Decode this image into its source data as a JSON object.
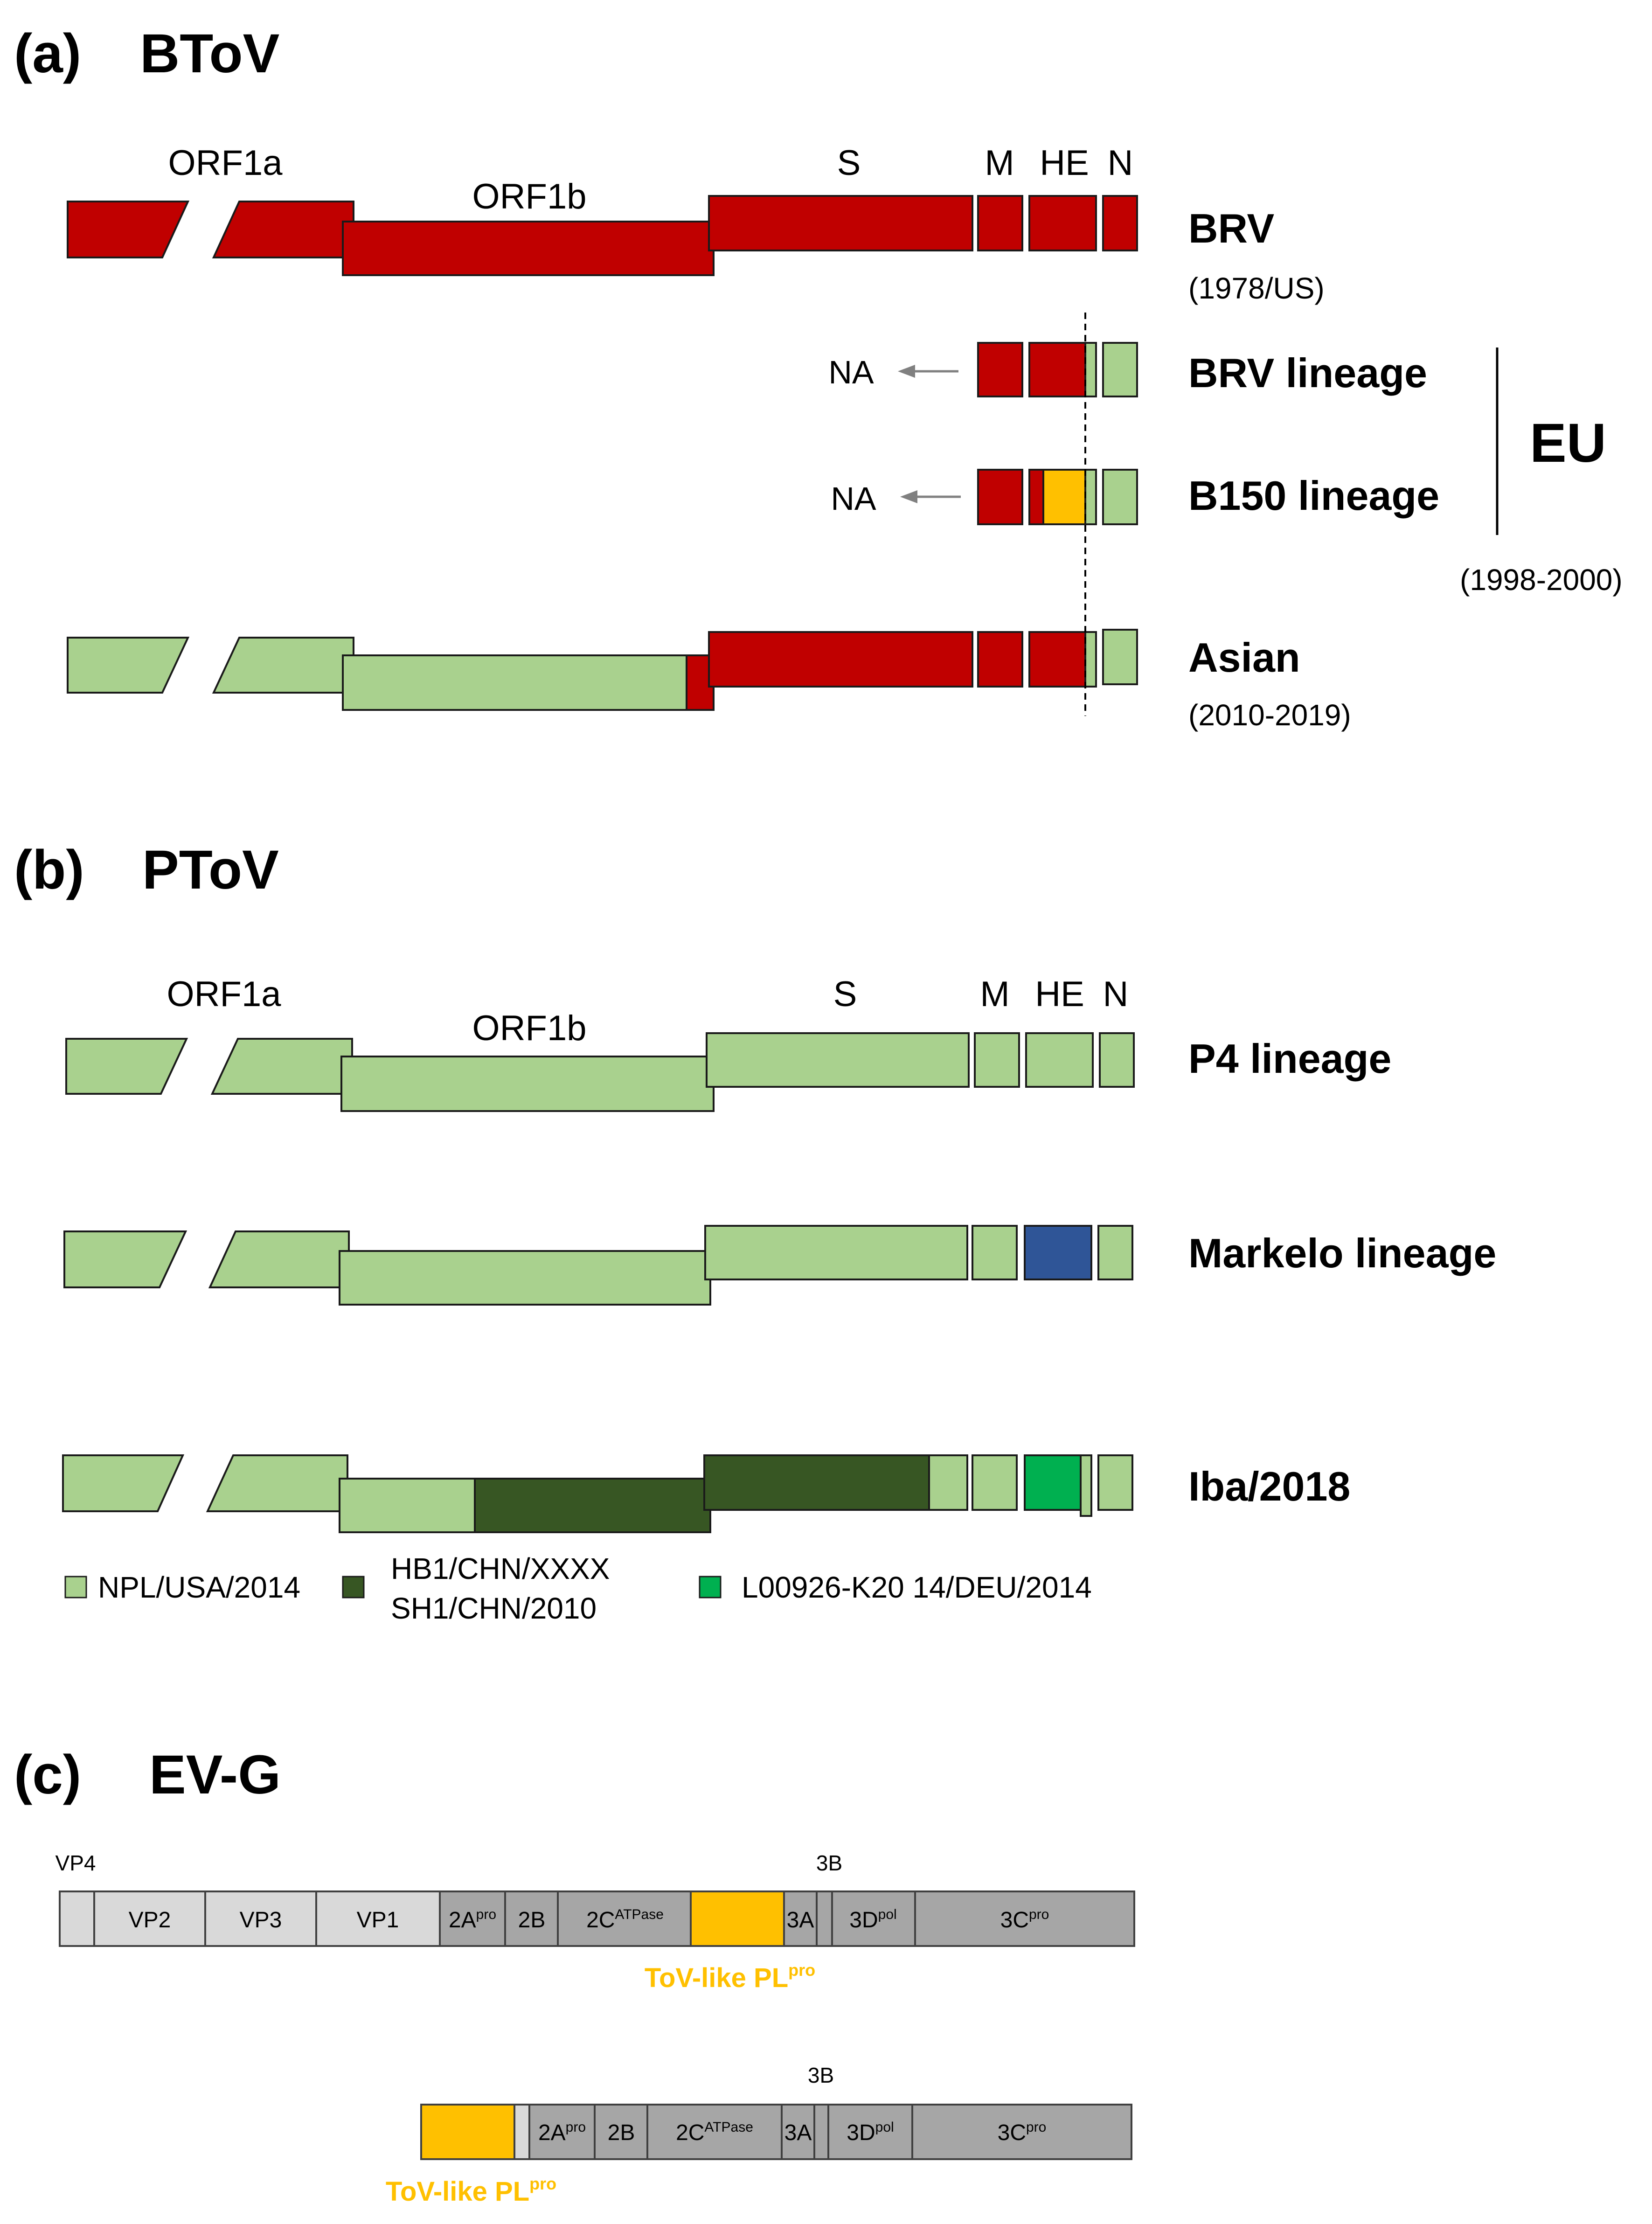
{
  "colors": {
    "brv_red": "#c00000",
    "light_green": "#a9d18e",
    "dark_green": "#375623",
    "navy_blue": "#2f5597",
    "bright_green": "#00b050",
    "orange": "#ffc000",
    "light_gray": "#d9d9d9",
    "mid_gray": "#a6a6a6",
    "outline": "#1a1a1a"
  },
  "panel_a": {
    "letter": "(a)",
    "name": "BToV",
    "gene_labels": {
      "orf1a": "ORF1a",
      "orf1b": "ORF1b",
      "s": "S",
      "m": "M",
      "he": "HE",
      "n": "N"
    },
    "rows": {
      "brv": {
        "name": "BRV",
        "sub": "(1978/US)"
      },
      "brv_lineage": {
        "name": "BRV lineage",
        "na": "NA"
      },
      "b150_lineage": {
        "name": "B150 lineage",
        "na": "NA"
      },
      "asian": {
        "name": "Asian",
        "sub": "(2010-2019)"
      }
    },
    "group_label": "EU",
    "group_sub": "(1998-2000)"
  },
  "panel_b": {
    "letter": "(b)",
    "name": "PToV",
    "gene_labels": {
      "orf1a": "ORF1a",
      "orf1b": "ORF1b",
      "s": "S",
      "m": "M",
      "he": "HE",
      "n": "N"
    },
    "rows": {
      "p4": {
        "name": "P4 lineage"
      },
      "markelo": {
        "name": "Markelo lineage"
      },
      "iba": {
        "name": "Iba/2018"
      }
    },
    "legend": [
      {
        "label": "NPL/USA/2014",
        "color": "#a9d18e"
      },
      {
        "label_line1": "HB1/CHN/XXXX",
        "label_line2": "SH1/CHN/2010",
        "color": "#375623"
      },
      {
        "label": "L00926-K20 14/DEU/2014",
        "color": "#00b050"
      }
    ]
  },
  "panel_c": {
    "letter": "(c)",
    "name": "EV-G",
    "genome1": {
      "above_labels": {
        "vp4": "VP4",
        "b3": "3B"
      },
      "segments": {
        "vp2": "VP2",
        "vp3": "VP3",
        "vp1": "VP1",
        "a2": {
          "base": "2A",
          "sup": "pro"
        },
        "b2": "2B",
        "c2": {
          "base": "2C",
          "sup": "ATPase"
        },
        "a3": "3A",
        "d3": {
          "base": "3D",
          "sup": "pol"
        },
        "c3": {
          "base": "3C",
          "sup": "pro"
        }
      },
      "insert_label": {
        "base": "ToV-like PL",
        "sup": "pro"
      }
    },
    "genome2": {
      "above_labels": {
        "b3": "3B"
      },
      "segments": {
        "a2": {
          "base": "2A",
          "sup": "pro"
        },
        "b2": "2B",
        "c2": {
          "base": "2C",
          "sup": "ATPase"
        },
        "a3": "3A",
        "d3": {
          "base": "3D",
          "sup": "pol"
        },
        "c3": {
          "base": "3C",
          "sup": "pro"
        }
      },
      "insert_label": {
        "base": "ToV-like PL",
        "sup": "pro"
      }
    }
  }
}
